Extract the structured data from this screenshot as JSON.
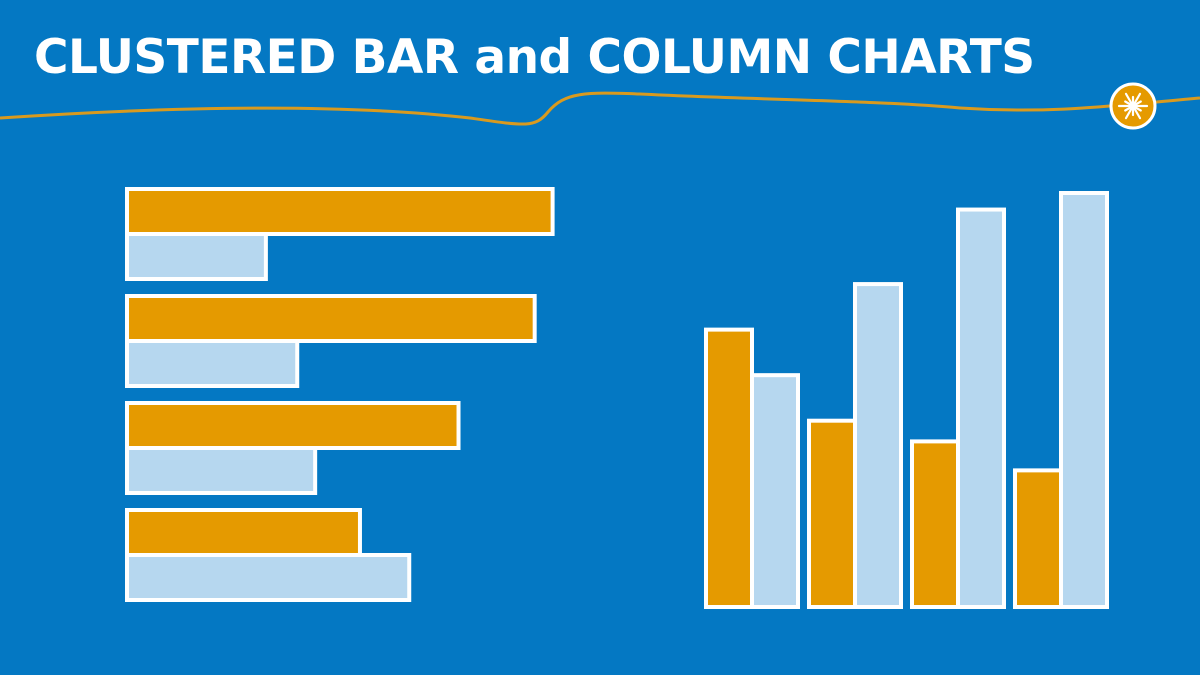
{
  "header": {
    "title": "CLUSTERED BAR and COLUMN CHARTS"
  },
  "colors": {
    "background": "#0478c3",
    "orange": "#e59a00",
    "light_blue": "#b6d7ef",
    "outline": "#ffffff",
    "accent_line": "#d99a1f"
  },
  "icons": {
    "badge": "starburst-icon"
  },
  "chart_data": [
    {
      "type": "bar",
      "orientation": "horizontal",
      "categories": [
        "",
        "",
        "",
        ""
      ],
      "series": [
        {
          "color": "#e59a00",
          "values": [
            95,
            91,
            74,
            52
          ]
        },
        {
          "color": "#b6d7ef",
          "values": [
            31,
            38,
            42,
            63
          ]
        }
      ],
      "xlim": [
        0,
        100
      ],
      "grid": false,
      "legend": "none"
    },
    {
      "type": "bar",
      "orientation": "vertical",
      "categories": [
        "",
        "",
        "",
        ""
      ],
      "series": [
        {
          "color": "#e59a00",
          "values": [
            67,
            45,
            40,
            33
          ]
        },
        {
          "color": "#b6d7ef",
          "values": [
            56,
            78,
            96,
            100
          ]
        }
      ],
      "ylim": [
        0,
        100
      ],
      "grid": false,
      "legend": "none"
    }
  ]
}
